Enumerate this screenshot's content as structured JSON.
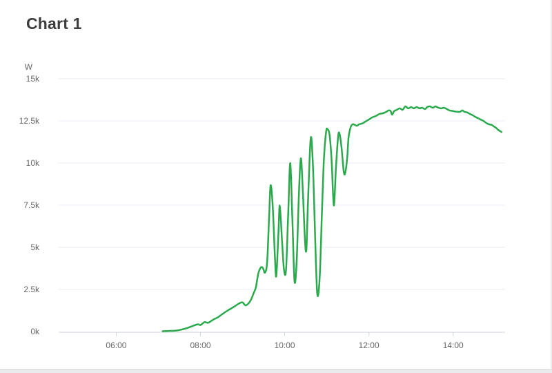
{
  "chart_data": {
    "type": "line",
    "title": "Chart 1",
    "ylabel": "W",
    "xlabel": "",
    "grid": true,
    "legend": false,
    "line_color": "#2baa4d",
    "grid_color": "#e7eef4",
    "axis_color": "#ccd6e0",
    "label_color": "#666666",
    "title_color": "#3d3d3d",
    "ylim": [
      0,
      15000
    ],
    "x_axis_range": [
      "04:38",
      "15:14"
    ],
    "x_ticks": [
      "06:00",
      "08:00",
      "10:00",
      "12:00",
      "14:00"
    ],
    "y_ticks": [
      {
        "label": "15k",
        "value": 15000
      },
      {
        "label": "12.5k",
        "value": 12500
      },
      {
        "label": "10k",
        "value": 10000
      },
      {
        "label": "7.5k",
        "value": 7500
      },
      {
        "label": "5k",
        "value": 5000
      },
      {
        "label": "2.5k",
        "value": 2500
      },
      {
        "label": "0k",
        "value": 0
      }
    ],
    "points": [
      [
        "07:06",
        20
      ],
      [
        "07:16",
        40
      ],
      [
        "07:26",
        60
      ],
      [
        "07:33",
        120
      ],
      [
        "07:41",
        210
      ],
      [
        "07:49",
        330
      ],
      [
        "07:56",
        430
      ],
      [
        "08:00",
        390
      ],
      [
        "08:06",
        560
      ],
      [
        "08:11",
        520
      ],
      [
        "08:18",
        700
      ],
      [
        "08:25",
        850
      ],
      [
        "08:31",
        1030
      ],
      [
        "08:38",
        1230
      ],
      [
        "08:45",
        1400
      ],
      [
        "08:51",
        1560
      ],
      [
        "08:56",
        1690
      ],
      [
        "09:00",
        1730
      ],
      [
        "09:04",
        1560
      ],
      [
        "09:08",
        1650
      ],
      [
        "09:12",
        1890
      ],
      [
        "09:16",
        2300
      ],
      [
        "09:19",
        2630
      ],
      [
        "09:22",
        3370
      ],
      [
        "09:25",
        3740
      ],
      [
        "09:28",
        3820
      ],
      [
        "09:30",
        3660
      ],
      [
        "09:32",
        3500
      ],
      [
        "09:35",
        4110
      ],
      [
        "09:38",
        6990
      ],
      [
        "09:40",
        8680
      ],
      [
        "09:43",
        7400
      ],
      [
        "09:46",
        4520
      ],
      [
        "09:48",
        3290
      ],
      [
        "09:51",
        5760
      ],
      [
        "09:53",
        7480
      ],
      [
        "09:56",
        5550
      ],
      [
        "09:59",
        3660
      ],
      [
        "10:02",
        3700
      ],
      [
        "10:05",
        6990
      ],
      [
        "10:08",
        9990
      ],
      [
        "10:11",
        6580
      ],
      [
        "10:14",
        3000
      ],
      [
        "10:17",
        4110
      ],
      [
        "10:20",
        7810
      ],
      [
        "10:23",
        10280
      ],
      [
        "10:26",
        8220
      ],
      [
        "10:29",
        5350
      ],
      [
        "10:31",
        4890
      ],
      [
        "10:33",
        7400
      ],
      [
        "10:37",
        11430
      ],
      [
        "10:40",
        10070
      ],
      [
        "10:43",
        6170
      ],
      [
        "10:45",
        3500
      ],
      [
        "10:47",
        2100
      ],
      [
        "10:50",
        3290
      ],
      [
        "10:53",
        6990
      ],
      [
        "10:56",
        10280
      ],
      [
        "10:59",
        11840
      ],
      [
        "11:01",
        12010
      ],
      [
        "11:04",
        11640
      ],
      [
        "11:07",
        10070
      ],
      [
        "11:10",
        7480
      ],
      [
        "11:13",
        9660
      ],
      [
        "11:16",
        11510
      ],
      [
        "11:18",
        11760
      ],
      [
        "11:21",
        10900
      ],
      [
        "11:24",
        9540
      ],
      [
        "11:26",
        9380
      ],
      [
        "11:29",
        10280
      ],
      [
        "11:31",
        11510
      ],
      [
        "11:34",
        12130
      ],
      [
        "11:37",
        12300
      ],
      [
        "11:40",
        12260
      ],
      [
        "11:43",
        12210
      ],
      [
        "11:46",
        12300
      ],
      [
        "11:50",
        12340
      ],
      [
        "11:55",
        12460
      ],
      [
        "12:00",
        12580
      ],
      [
        "12:05",
        12710
      ],
      [
        "12:10",
        12790
      ],
      [
        "12:15",
        12910
      ],
      [
        "12:20",
        12950
      ],
      [
        "12:25",
        13040
      ],
      [
        "12:28",
        13120
      ],
      [
        "12:31",
        13080
      ],
      [
        "12:33",
        12870
      ],
      [
        "12:36",
        13080
      ],
      [
        "12:40",
        13160
      ],
      [
        "12:44",
        13240
      ],
      [
        "12:48",
        13160
      ],
      [
        "12:52",
        13360
      ],
      [
        "12:56",
        13240
      ],
      [
        "13:00",
        13320
      ],
      [
        "13:04",
        13240
      ],
      [
        "13:08",
        13320
      ],
      [
        "13:12",
        13240
      ],
      [
        "13:16",
        13280
      ],
      [
        "13:20",
        13200
      ],
      [
        "13:23",
        13320
      ],
      [
        "13:27",
        13360
      ],
      [
        "13:31",
        13280
      ],
      [
        "13:35",
        13360
      ],
      [
        "13:39",
        13280
      ],
      [
        "13:43",
        13240
      ],
      [
        "13:47",
        13280
      ],
      [
        "13:51",
        13200
      ],
      [
        "13:55",
        13120
      ],
      [
        "14:00",
        13080
      ],
      [
        "14:05",
        13040
      ],
      [
        "14:10",
        13040
      ],
      [
        "14:13",
        13120
      ],
      [
        "14:16",
        13040
      ],
      [
        "14:20",
        13000
      ],
      [
        "14:24",
        12910
      ],
      [
        "14:28",
        12830
      ],
      [
        "14:31",
        12750
      ],
      [
        "14:35",
        12670
      ],
      [
        "14:39",
        12580
      ],
      [
        "14:43",
        12500
      ],
      [
        "14:47",
        12380
      ],
      [
        "14:51",
        12300
      ],
      [
        "14:55",
        12260
      ],
      [
        "14:58",
        12170
      ],
      [
        "15:01",
        12090
      ],
      [
        "15:04",
        11970
      ],
      [
        "15:07",
        11890
      ],
      [
        "15:09",
        11840
      ]
    ]
  }
}
